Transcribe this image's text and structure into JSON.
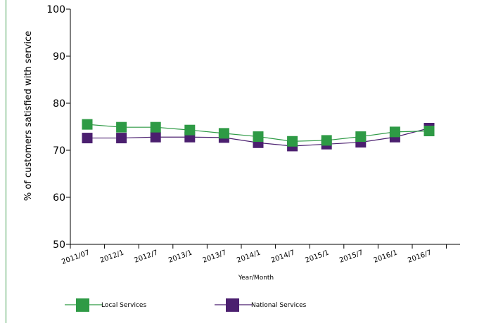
{
  "chart_data": {
    "type": "line",
    "ylabel": "% of customers satisfied with service",
    "xlabel": "Year/Month",
    "ylim": [
      50,
      100
    ],
    "yticks": [
      50,
      60,
      70,
      80,
      90,
      100
    ],
    "categories": [
      "2011/07",
      "2012/1",
      "2012/7",
      "2013/1",
      "2013/7",
      "2014/1",
      "2014/7",
      "2015/1",
      "2015/7",
      "2016/1",
      "2016/7"
    ],
    "series": [
      {
        "name": "Local Services",
        "color": "#2e9a45",
        "marker": "square",
        "values": [
          75.5,
          74.9,
          74.9,
          74.3,
          73.6,
          72.9,
          71.9,
          72.1,
          72.9,
          73.9,
          74.1
        ]
      },
      {
        "name": "National Services",
        "color": "#4b1f6f",
        "marker": "square",
        "values": [
          72.6,
          72.6,
          72.8,
          72.8,
          72.7,
          71.6,
          70.9,
          71.3,
          71.7,
          72.8,
          74.7
        ]
      }
    ],
    "grid": false,
    "legend_position": "bottom-left"
  }
}
